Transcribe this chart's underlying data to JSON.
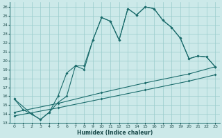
{
  "xlabel": "Humidex (Indice chaleur)",
  "bg_color": "#cce9e9",
  "grid_color": "#99cccc",
  "line_color": "#1a6b6b",
  "xlim": [
    -0.5,
    23.5
  ],
  "ylim": [
    13,
    26.5
  ],
  "xticks": [
    0,
    1,
    2,
    3,
    4,
    5,
    6,
    7,
    8,
    9,
    10,
    11,
    12,
    13,
    14,
    15,
    16,
    17,
    18,
    19,
    20,
    21,
    22,
    23
  ],
  "yticks": [
    13,
    14,
    15,
    16,
    17,
    18,
    19,
    20,
    21,
    22,
    23,
    24,
    25,
    26
  ],
  "line1_x": [
    0,
    1,
    2,
    3,
    4,
    5,
    6,
    7,
    8,
    9,
    10,
    11,
    12,
    13,
    14,
    15,
    16,
    17,
    18,
    19,
    20,
    21,
    22,
    23
  ],
  "line1_y": [
    15.7,
    14.5,
    14.0,
    13.4,
    14.2,
    16.0,
    18.6,
    19.4,
    19.4,
    22.3,
    24.8,
    24.4,
    22.3,
    25.8,
    25.1,
    26.0,
    25.8,
    24.5,
    23.7,
    22.5,
    20.2,
    20.5,
    20.4,
    19.3
  ],
  "line2_x": [
    0,
    2,
    3,
    4,
    5,
    6,
    7,
    8,
    9,
    10,
    11,
    12,
    13,
    14,
    15,
    16,
    17,
    18,
    19,
    20,
    21,
    22,
    23
  ],
  "line2_y": [
    15.7,
    14.0,
    13.4,
    14.2,
    15.3,
    16.0,
    19.4,
    19.0,
    22.3,
    24.8,
    24.4,
    22.3,
    25.8,
    25.1,
    26.0,
    25.8,
    24.5,
    23.7,
    22.5,
    20.2,
    20.5,
    20.4,
    19.3
  ],
  "line3_x": [
    0,
    5,
    10,
    15,
    20,
    23
  ],
  "line3_y": [
    14.2,
    15.2,
    16.4,
    17.5,
    18.5,
    19.3
  ],
  "line4_x": [
    0,
    5,
    10,
    15,
    20,
    23
  ],
  "line4_y": [
    13.8,
    14.7,
    15.7,
    16.7,
    17.7,
    18.4
  ]
}
